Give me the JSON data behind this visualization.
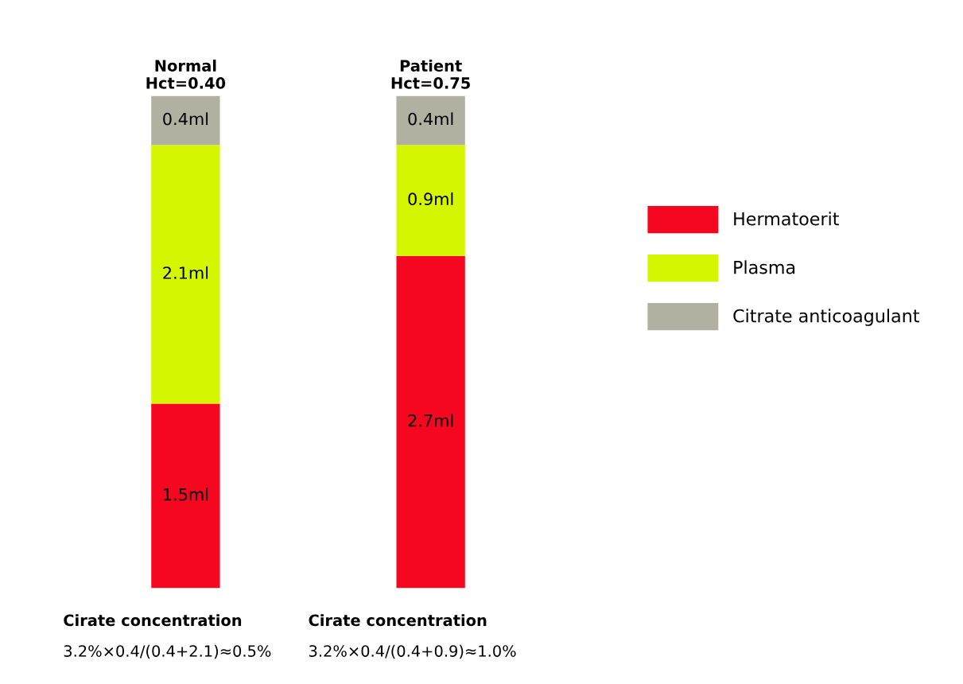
{
  "chart_data": {
    "type": "bar",
    "stacked": true,
    "categories": [
      "Normal\nHct=0.40",
      "Patient\nHct=0.75"
    ],
    "series": [
      {
        "name": "Hermatoerit",
        "color": "#f5081f",
        "values": [
          1.5,
          2.7
        ],
        "value_labels": [
          "1.5ml",
          "2.7ml"
        ]
      },
      {
        "name": "Plasma",
        "color": "#d4f700",
        "values": [
          2.1,
          0.9
        ],
        "value_labels": [
          "2.1ml",
          "0.9ml"
        ]
      },
      {
        "name": "Citrate anticoagulant",
        "color": "#b0b1a0",
        "values": [
          0.4,
          0.4
        ],
        "value_labels": [
          "0.4ml",
          "0.4ml"
        ]
      }
    ],
    "annotations": [
      "Cirate concentration",
      "3.2%×0.4/(0.4+2.1)≈0.5%",
      "Cirate concentration",
      "3.2%×0.4/(0.4+0.9)≈1.0%"
    ],
    "legend": "right",
    "tick_labels": "x",
    "grid": false
  }
}
